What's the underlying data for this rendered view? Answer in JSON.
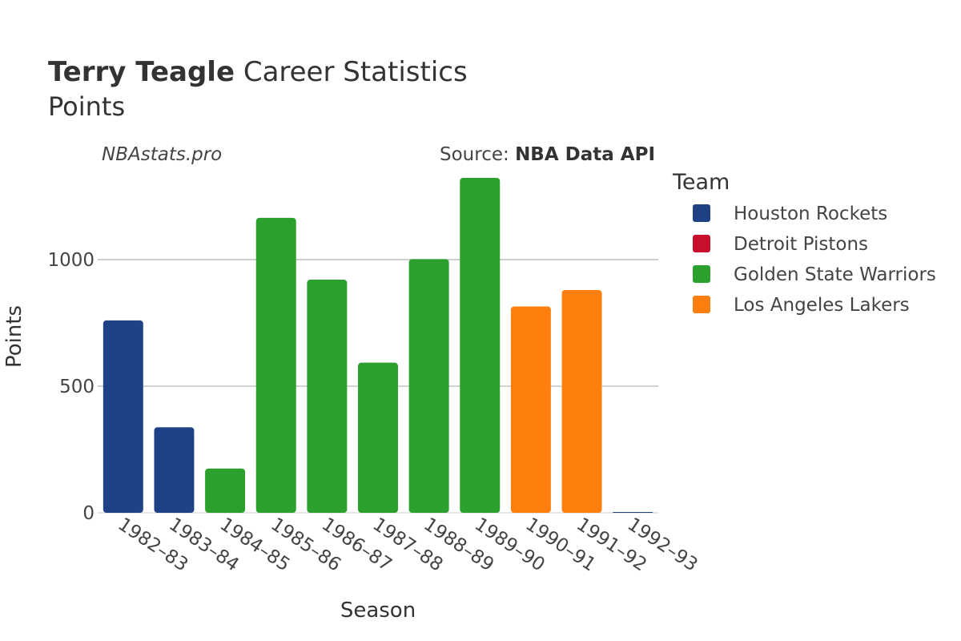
{
  "title": {
    "player": "Terry Teagle",
    "rest": " Career Statistics",
    "subtitle": "Points"
  },
  "watermark": "NBAstats.pro",
  "source": {
    "label": "Source: ",
    "name": "NBA Data API"
  },
  "legend": {
    "title": "Team",
    "items": [
      {
        "name": "Houston Rockets",
        "color": "#1f4287"
      },
      {
        "name": "Detroit Pistons",
        "color": "#c8102e"
      },
      {
        "name": "Golden State Warriors",
        "color": "#2ca02c"
      },
      {
        "name": "Los Angeles Lakers",
        "color": "#ff7f0e"
      }
    ]
  },
  "chart_data": {
    "type": "bar",
    "xlabel": "Season",
    "ylabel": "Points",
    "ylim": [
      0,
      1380
    ],
    "yticks": [
      0,
      500,
      1000
    ],
    "ytick_labels": [
      "0",
      "500",
      "1000"
    ],
    "grid": true,
    "legend_position": "right",
    "categories": [
      "1982–83",
      "1983–84",
      "1984–85",
      "1985–86",
      "1986–87",
      "1987–88",
      "1988–89",
      "1989–90",
      "1990–91",
      "1991–92",
      "1992–93"
    ],
    "bars": [
      {
        "category": "1982–83",
        "team": "Houston Rockets",
        "value": 760
      },
      {
        "category": "1983–84",
        "team": "Houston Rockets",
        "value": 338
      },
      {
        "category": "1984–85",
        "team": "Golden State Warriors",
        "value": 175
      },
      {
        "category": "1985–86",
        "team": "Golden State Warriors",
        "value": 1165
      },
      {
        "category": "1986–87",
        "team": "Golden State Warriors",
        "value": 921
      },
      {
        "category": "1987–88",
        "team": "Golden State Warriors",
        "value": 593
      },
      {
        "category": "1988–89",
        "team": "Golden State Warriors",
        "value": 1002
      },
      {
        "category": "1989–90",
        "team": "Golden State Warriors",
        "value": 1323
      },
      {
        "category": "1990–91",
        "team": "Los Angeles Lakers",
        "value": 815
      },
      {
        "category": "1991–92",
        "team": "Los Angeles Lakers",
        "value": 880
      },
      {
        "category": "1992–93",
        "team": "Houston Rockets",
        "value": 2
      }
    ]
  }
}
